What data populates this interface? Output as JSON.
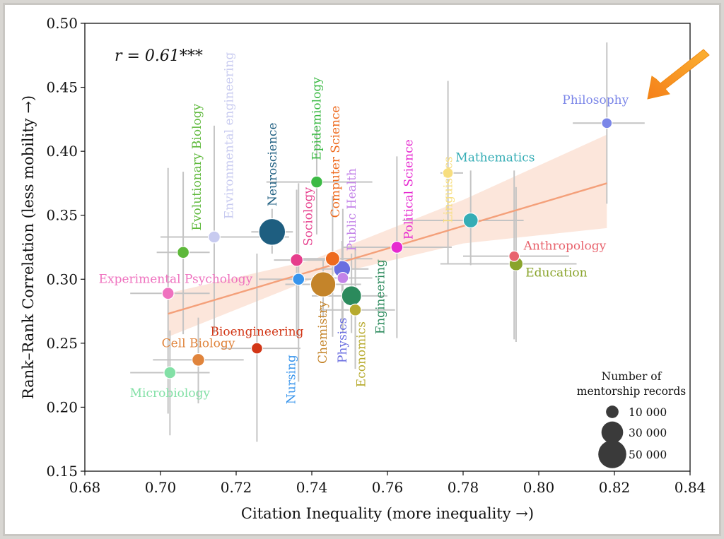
{
  "chart_data": {
    "type": "scatter",
    "title": "",
    "xlabel": "Citation Inequality (more inequality →)",
    "ylabel": "Rank–Rank Correlation (less mobility →)",
    "xlim": [
      0.68,
      0.84
    ],
    "ylim": [
      0.15,
      0.5
    ],
    "xticks": [
      "0.68",
      "0.70",
      "0.72",
      "0.74",
      "0.76",
      "0.78",
      "0.80",
      "0.82",
      "0.84"
    ],
    "yticks": [
      "0.15",
      "0.20",
      "0.25",
      "0.30",
      "0.35",
      "0.40",
      "0.45",
      "0.50"
    ],
    "grid": false,
    "correlation_text": "r = 0.61***",
    "regression": {
      "x0": 0.702,
      "y0": 0.273,
      "x1": 0.818,
      "y1": 0.375,
      "band_low": [
        0.255,
        0.3,
        0.328,
        0.34
      ],
      "band_high": [
        0.289,
        0.315,
        0.362,
        0.413
      ],
      "band_x": [
        0.702,
        0.74,
        0.78,
        0.818
      ],
      "color": "#f4a07a"
    },
    "legend": {
      "title_line1": "Number of",
      "title_line2": "mentorship records",
      "entries": [
        {
          "label": "10 000",
          "records": 10000
        },
        {
          "label": "30 000",
          "records": 30000
        },
        {
          "label": "50 000",
          "records": 50000
        }
      ],
      "placement": "bottom-right"
    },
    "fields": [
      {
        "name": "Philosophy",
        "x": 0.818,
        "y": 0.422,
        "records": 7000,
        "color": "#7b86e8",
        "xerr": [
          0.809,
          0.828
        ],
        "yerr": [
          0.359,
          0.485
        ],
        "rot": 0,
        "anchor": "middle",
        "lx": 0.815,
        "ly": 0.437
      },
      {
        "name": "Linguistics",
        "x": 0.776,
        "y": 0.383,
        "records": 7000,
        "color": "#f7de7f",
        "xerr": [
          0.774,
          0.78
        ],
        "yerr": [
          0.312,
          0.455
        ],
        "rot": -90,
        "anchor": "end",
        "lx": 0.776,
        "ly": 0.396
      },
      {
        "name": "Mathematics",
        "x": 0.782,
        "y": 0.346,
        "records": 14000,
        "color": "#35adb5",
        "xerr": [
          0.764,
          0.796
        ],
        "yerr": [
          0.311,
          0.385
        ],
        "rot": 0,
        "anchor": "start",
        "lx": 0.778,
        "ly": 0.392
      },
      {
        "name": "Anthropology",
        "x": 0.7935,
        "y": 0.318,
        "records": 7000,
        "color": "#e8646e",
        "xerr": [
          0.78,
          0.808
        ],
        "yerr": [
          0.253,
          0.385
        ],
        "rot": 0,
        "anchor": "start",
        "lx": 0.796,
        "ly": 0.323
      },
      {
        "name": "Education",
        "x": 0.794,
        "y": 0.312,
        "records": 12000,
        "color": "#8aa42c",
        "xerr": [
          0.774,
          0.81
        ],
        "yerr": [
          0.251,
          0.372
        ],
        "rot": 0,
        "anchor": "start",
        "lx": 0.7965,
        "ly": 0.302
      },
      {
        "name": "Political Science",
        "x": 0.7625,
        "y": 0.325,
        "records": 9000,
        "color": "#e62ad0",
        "xerr": [
          0.748,
          0.777
        ],
        "yerr": [
          0.254,
          0.396
        ],
        "rot": -90,
        "anchor": "start",
        "lx": 0.7655,
        "ly": 0.331
      },
      {
        "name": "Evolutionary Biology",
        "x": 0.706,
        "y": 0.321,
        "records": 9000,
        "color": "#5db83a",
        "xerr": [
          0.699,
          0.713
        ],
        "yerr": [
          0.257,
          0.384
        ],
        "rot": -90,
        "anchor": "start",
        "lx": 0.7095,
        "ly": 0.338
      },
      {
        "name": "Environmental engineering",
        "x": 0.7142,
        "y": 0.333,
        "records": 9000,
        "color": "#c8cbf0",
        "xerr": [
          0.7,
          0.734
        ],
        "yerr": [
          0.258,
          0.42
        ],
        "rot": -90,
        "anchor": "start",
        "lx": 0.718,
        "ly": 0.347
      },
      {
        "name": "Neuroscience",
        "x": 0.7295,
        "y": 0.337,
        "records": 45000,
        "color": "#1e5e80",
        "xerr": [
          0.724,
          0.735
        ],
        "yerr": [
          0.32,
          0.355
        ],
        "rot": -90,
        "anchor": "start",
        "lx": 0.7295,
        "ly": 0.357
      },
      {
        "name": "Sociology",
        "x": 0.736,
        "y": 0.315,
        "records": 10000,
        "color": "#e63d8c",
        "xerr": [
          0.73,
          0.744
        ],
        "yerr": [
          0.255,
          0.37
        ],
        "rot": -90,
        "anchor": "start",
        "lx": 0.739,
        "ly": 0.326
      },
      {
        "name": "Epidemiology",
        "x": 0.7413,
        "y": 0.376,
        "records": 9000,
        "color": "#3cba45",
        "xerr": [
          0.728,
          0.756
        ],
        "yerr": [
          0.335,
          0.42
        ],
        "rot": -90,
        "anchor": "start",
        "lx": 0.7412,
        "ly": 0.393
      },
      {
        "name": "Computer Science",
        "x": 0.7455,
        "y": 0.316,
        "records": 13000,
        "color": "#ee6a1e",
        "xerr": [
          0.736,
          0.756
        ],
        "yerr": [
          0.255,
          0.365
        ],
        "rot": -90,
        "anchor": "start",
        "lx": 0.7462,
        "ly": 0.348
      },
      {
        "name": "Public Health",
        "x": 0.7482,
        "y": 0.301,
        "records": 8000,
        "color": "#c383e8",
        "xerr": [
          0.74,
          0.756
        ],
        "yerr": [
          0.258,
          0.355
        ],
        "rot": -90,
        "anchor": "start",
        "lx": 0.7505,
        "ly": 0.322
      },
      {
        "name": "Physics",
        "x": 0.748,
        "y": 0.308,
        "records": 18000,
        "color": "#6a6ee0",
        "xerr": [
          0.741,
          0.755
        ],
        "yerr": [
          0.261,
          0.33
        ],
        "rot": -90,
        "anchor": "end",
        "lx": 0.748,
        "ly": 0.27
      },
      {
        "name": "Chemistry",
        "x": 0.743,
        "y": 0.296,
        "records": 40000,
        "color": "#c4842a",
        "xerr": [
          0.733,
          0.753
        ],
        "yerr": [
          0.27,
          0.315
        ],
        "rot": -90,
        "anchor": "end",
        "lx": 0.7428,
        "ly": 0.283
      },
      {
        "name": "Engineering",
        "x": 0.7505,
        "y": 0.287,
        "records": 25000,
        "color": "#2b8a5c",
        "xerr": [
          0.74,
          0.76
        ],
        "yerr": [
          0.258,
          0.32
        ],
        "rot": -90,
        "anchor": "start",
        "lx": 0.758,
        "ly": 0.257
      },
      {
        "name": "Economics",
        "x": 0.7515,
        "y": 0.276,
        "records": 9000,
        "color": "#b7aa2e",
        "xerr": [
          0.742,
          0.762
        ],
        "yerr": [
          0.23,
          0.325
        ],
        "rot": -90,
        "anchor": "end",
        "lx": 0.753,
        "ly": 0.267
      },
      {
        "name": "Nursing",
        "x": 0.7365,
        "y": 0.3,
        "records": 9000,
        "color": "#3794ec",
        "xerr": [
          0.726,
          0.746
        ],
        "yerr": [
          0.22,
          0.375
        ],
        "rot": -90,
        "anchor": "end",
        "lx": 0.7345,
        "ly": 0.241
      },
      {
        "name": "Experimental Psychology",
        "x": 0.702,
        "y": 0.289,
        "records": 9000,
        "color": "#ef72bf",
        "xerr": [
          0.692,
          0.713
        ],
        "yerr": [
          0.195,
          0.387
        ],
        "rot": 0,
        "anchor": "middle",
        "lx": 0.704,
        "ly": 0.297
      },
      {
        "name": "Bioengineering",
        "x": 0.7255,
        "y": 0.246,
        "records": 8000,
        "color": "#d23616",
        "xerr": [
          0.716,
          0.737
        ],
        "yerr": [
          0.173,
          0.32
        ],
        "rot": 0,
        "anchor": "middle",
        "lx": 0.7255,
        "ly": 0.256
      },
      {
        "name": "Cell Biology",
        "x": 0.71,
        "y": 0.237,
        "records": 10000,
        "color": "#e0843c",
        "xerr": [
          0.698,
          0.722
        ],
        "yerr": [
          0.203,
          0.27
        ],
        "rot": 0,
        "anchor": "middle",
        "lx": 0.71,
        "ly": 0.247
      },
      {
        "name": "Microbiology",
        "x": 0.7025,
        "y": 0.227,
        "records": 9000,
        "color": "#83e0a6",
        "xerr": [
          0.692,
          0.713
        ],
        "yerr": [
          0.178,
          0.26
        ],
        "rot": 0,
        "anchor": "middle",
        "lx": 0.7025,
        "ly": 0.208
      }
    ]
  },
  "annotation": {
    "arrow_color": "#f7921e",
    "arrow_target": "Philosophy"
  }
}
